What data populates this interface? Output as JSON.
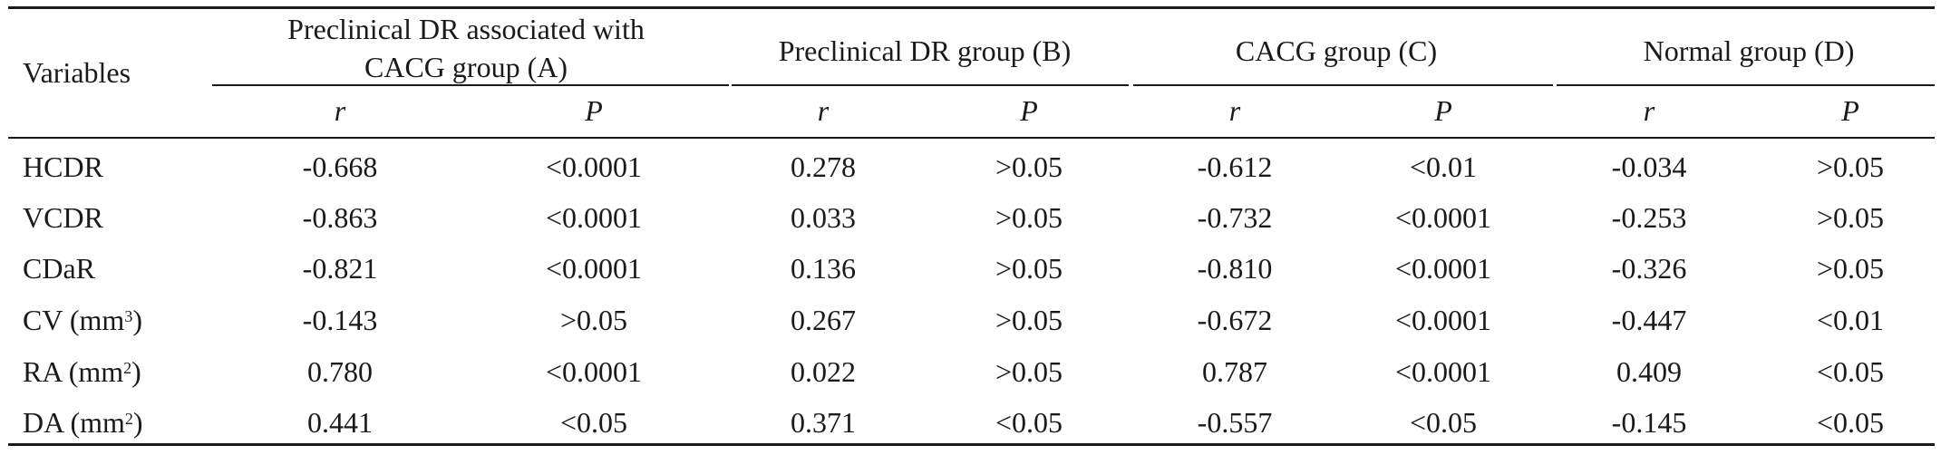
{
  "header": {
    "variables": "Variables",
    "groups": [
      {
        "line1": "Preclinical DR associated with",
        "line2": "CACG group (A)"
      },
      {
        "line1": "Preclinical DR group (B)"
      },
      {
        "line1": "CACG group (C)"
      },
      {
        "line1": "Normal group (D)"
      }
    ],
    "r": "r",
    "p": "P"
  },
  "rows": [
    {
      "label": "HCDR",
      "unit": "",
      "sup": "",
      "close": "",
      "values": [
        "-0.668",
        "<0.0001",
        "0.278",
        ">0.05",
        "-0.612",
        "<0.01",
        "-0.034",
        ">0.05"
      ]
    },
    {
      "label": "VCDR",
      "unit": "",
      "sup": "",
      "close": "",
      "values": [
        "-0.863",
        "<0.0001",
        "0.033",
        ">0.05",
        "-0.732",
        "<0.0001",
        "-0.253",
        ">0.05"
      ]
    },
    {
      "label": "CDaR",
      "unit": "",
      "sup": "",
      "close": "",
      "values": [
        "-0.821",
        "<0.0001",
        "0.136",
        ">0.05",
        "-0.810",
        "<0.0001",
        "-0.326",
        ">0.05"
      ]
    },
    {
      "label": "CV (mm",
      "unit": "",
      "sup": "3",
      "close": ")",
      "values": [
        "-0.143",
        ">0.05",
        "0.267",
        ">0.05",
        "-0.672",
        "<0.0001",
        "-0.447",
        "<0.01"
      ]
    },
    {
      "label": "RA (mm",
      "unit": "",
      "sup": "2",
      "close": ")",
      "values": [
        "0.780",
        "<0.0001",
        "0.022",
        ">0.05",
        "0.787",
        "<0.0001",
        "0.409",
        "<0.05"
      ]
    },
    {
      "label": "DA (mm",
      "unit": "",
      "sup": "2",
      "close": ")",
      "values": [
        "0.441",
        "<0.05",
        "0.371",
        "<0.05",
        "-0.557",
        "<0.05",
        "-0.145",
        "<0.05"
      ]
    }
  ]
}
